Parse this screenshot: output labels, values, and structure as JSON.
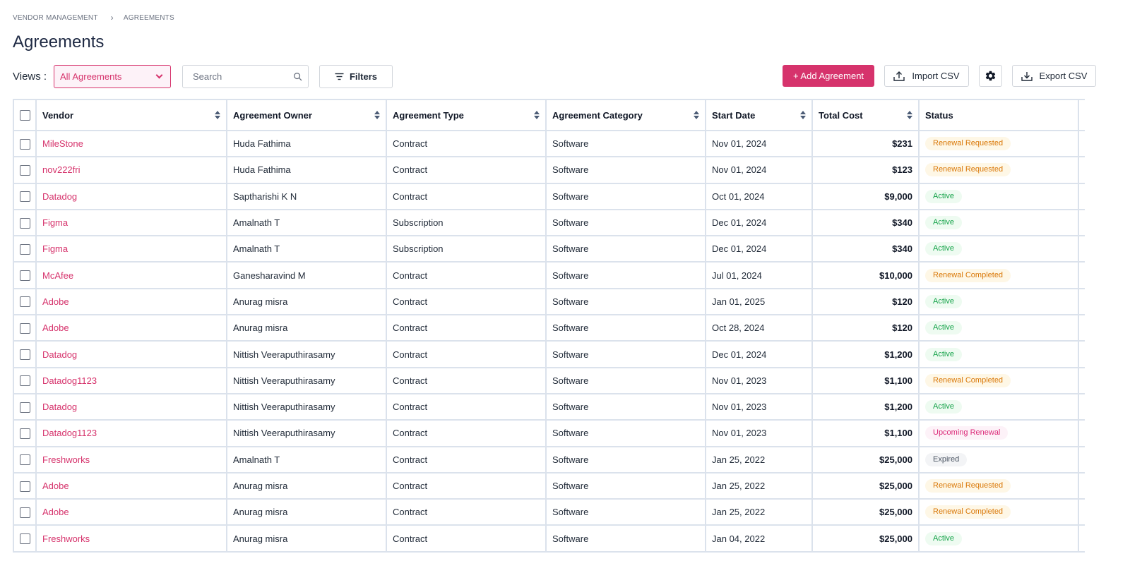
{
  "breadcrumb": {
    "parent": "VENDOR MANAGEMENT",
    "separator": "›",
    "current": "AGREEMENTS"
  },
  "page_title": "Agreements",
  "toolbar": {
    "views_label": "Views :",
    "views_selected": "All Agreements",
    "search_placeholder": "Search",
    "filters_label": "Filters",
    "add_label": "+ Add Agreement",
    "import_label": "Import CSV",
    "export_label": "Export CSV"
  },
  "colors": {
    "accent": "#d6336c",
    "border": "#dbe2ec"
  },
  "table": {
    "headers": [
      "Vendor",
      "Agreement Owner",
      "Agreement Type",
      "Agreement Category",
      "Start Date",
      "Total Cost",
      "Status"
    ],
    "rows": [
      {
        "vendor": "MileStone",
        "owner": "Huda Fathima",
        "type": "Contract",
        "category": "Software",
        "start_date": "Nov 01, 2024",
        "total_cost": "$231",
        "status": "Renewal Requested"
      },
      {
        "vendor": "nov222fri",
        "owner": "Huda Fathima",
        "type": "Contract",
        "category": "Software",
        "start_date": "Nov 01, 2024",
        "total_cost": "$123",
        "status": "Renewal Requested"
      },
      {
        "vendor": "Datadog",
        "owner": "Saptharishi K N",
        "type": "Contract",
        "category": "Software",
        "start_date": "Oct 01, 2024",
        "total_cost": "$9,000",
        "status": "Active"
      },
      {
        "vendor": "Figma",
        "owner": "Amalnath T",
        "type": "Subscription",
        "category": "Software",
        "start_date": "Dec 01, 2024",
        "total_cost": "$340",
        "status": "Active"
      },
      {
        "vendor": "Figma",
        "owner": "Amalnath T",
        "type": "Subscription",
        "category": "Software",
        "start_date": "Dec 01, 2024",
        "total_cost": "$340",
        "status": "Active"
      },
      {
        "vendor": "McAfee",
        "owner": "Ganesharavind M",
        "type": "Contract",
        "category": "Software",
        "start_date": "Jul 01, 2024",
        "total_cost": "$10,000",
        "status": "Renewal Completed"
      },
      {
        "vendor": "Adobe",
        "owner": "Anurag misra",
        "type": "Contract",
        "category": "Software",
        "start_date": "Jan 01, 2025",
        "total_cost": "$120",
        "status": "Active"
      },
      {
        "vendor": "Adobe",
        "owner": "Anurag misra",
        "type": "Contract",
        "category": "Software",
        "start_date": "Oct 28, 2024",
        "total_cost": "$120",
        "status": "Active"
      },
      {
        "vendor": "Datadog",
        "owner": "Nittish Veeraputhirasamy",
        "type": "Contract",
        "category": "Software",
        "start_date": "Dec 01, 2024",
        "total_cost": "$1,200",
        "status": "Active"
      },
      {
        "vendor": "Datadog1123",
        "owner": "Nittish Veeraputhirasamy",
        "type": "Contract",
        "category": "Software",
        "start_date": "Nov 01, 2023",
        "total_cost": "$1,100",
        "status": "Renewal Completed"
      },
      {
        "vendor": "Datadog",
        "owner": "Nittish Veeraputhirasamy",
        "type": "Contract",
        "category": "Software",
        "start_date": "Nov 01, 2023",
        "total_cost": "$1,200",
        "status": "Active"
      },
      {
        "vendor": "Datadog1123",
        "owner": "Nittish Veeraputhirasamy",
        "type": "Contract",
        "category": "Software",
        "start_date": "Nov 01, 2023",
        "total_cost": "$1,100",
        "status": "Upcoming Renewal"
      },
      {
        "vendor": "Freshworks",
        "owner": "Amalnath T",
        "type": "Contract",
        "category": "Software",
        "start_date": "Jan 25, 2022",
        "total_cost": "$25,000",
        "status": "Expired"
      },
      {
        "vendor": "Adobe",
        "owner": "Anurag misra",
        "type": "Contract",
        "category": "Software",
        "start_date": "Jan 25, 2022",
        "total_cost": "$25,000",
        "status": "Renewal Requested"
      },
      {
        "vendor": "Adobe",
        "owner": "Anurag misra",
        "type": "Contract",
        "category": "Software",
        "start_date": "Jan 25, 2022",
        "total_cost": "$25,000",
        "status": "Renewal Completed"
      },
      {
        "vendor": "Freshworks",
        "owner": "Anurag misra",
        "type": "Contract",
        "category": "Software",
        "start_date": "Jan 04, 2022",
        "total_cost": "$25,000",
        "status": "Active"
      }
    ]
  }
}
